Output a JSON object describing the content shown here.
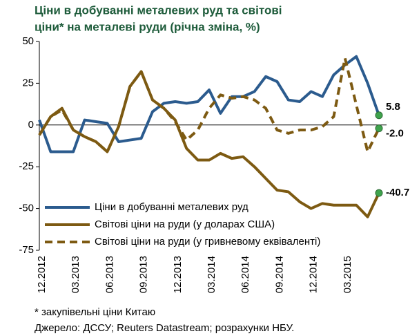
{
  "chart_data": {
    "type": "line",
    "title": [
      "Ціни в добуванні металевих руд та світові",
      "ціни* на металеві руди (річна зміна, %)"
    ],
    "categories": [
      "12.2012",
      null,
      null,
      "03.2013",
      null,
      null,
      "06.2013",
      null,
      null,
      "09.2013",
      null,
      null,
      "12.2013",
      null,
      null,
      "03.2014",
      null,
      null,
      "06.2014",
      null,
      null,
      "09.2014",
      null,
      null,
      "12.2014",
      null,
      null,
      "03.2015",
      null,
      null,
      null
    ],
    "series": [
      {
        "name": "Ціни в добуванні металевих руд",
        "color": "#2b5b8e",
        "dash": false,
        "label_color": "#2b5b8e",
        "values": [
          3,
          -16,
          -16,
          -16,
          3,
          2,
          1,
          -10,
          -9,
          -8,
          8,
          13,
          14,
          13,
          14,
          21,
          7,
          17,
          17,
          20,
          29,
          26,
          15,
          14,
          20,
          17,
          30,
          36,
          41,
          25,
          5.8
        ],
        "value_labels": [
          null,
          null,
          null,
          null,
          null,
          null,
          null,
          null,
          null,
          null,
          null,
          null,
          null,
          null,
          null,
          null,
          null,
          null,
          null,
          null,
          null,
          null,
          null,
          null,
          null,
          null,
          null,
          null,
          null,
          null,
          "5.8"
        ]
      },
      {
        "name": "Світові ціни на руди (у доларах США)",
        "color": "#7d5a12",
        "dash": false,
        "label_color": "#a0700e",
        "values": [
          -6,
          5,
          10,
          -3,
          -7,
          -10,
          -16,
          -1,
          23,
          32,
          15,
          10,
          3,
          -14,
          -21,
          -21,
          -17,
          -20,
          -19,
          -25,
          -32,
          -39,
          -40,
          -46,
          -50,
          -47,
          -48,
          -48,
          -48,
          -55,
          -40.7
        ],
        "value_labels": [
          null,
          null,
          null,
          null,
          null,
          null,
          null,
          null,
          null,
          null,
          null,
          null,
          null,
          null,
          null,
          null,
          null,
          null,
          null,
          null,
          null,
          null,
          null,
          null,
          null,
          null,
          null,
          null,
          null,
          null,
          "-40.7"
        ]
      },
      {
        "name": "Світові ціни на руди (у гривневому еквіваленті)",
        "color": "#7d5a12",
        "dash": true,
        "label_color": "#2b5b8e",
        "values": [
          -6,
          5,
          9,
          -3,
          -7,
          -10,
          -16,
          -1,
          23,
          32,
          15,
          10,
          2,
          -9,
          -3,
          10,
          18,
          16,
          17,
          15,
          10,
          -3,
          -5,
          -3,
          -3,
          -1,
          5,
          40,
          12,
          -16,
          -2
        ],
        "value_labels": [
          null,
          null,
          null,
          null,
          null,
          null,
          null,
          null,
          null,
          null,
          null,
          null,
          null,
          null,
          null,
          null,
          null,
          null,
          null,
          null,
          null,
          null,
          null,
          null,
          null,
          null,
          null,
          null,
          null,
          null,
          "-2.0"
        ]
      }
    ],
    "marker_color": "#3fa34d",
    "ylim": [
      -75,
      50
    ],
    "yticks": [
      -75,
      -50,
      -25,
      0,
      25,
      50
    ],
    "grid": false,
    "legend": "lower left",
    "notes": [
      "* закупівельні ціни Китаю",
      "Джерело: ДССУ; Reuters Datastream; розрахунки НБУ."
    ]
  }
}
